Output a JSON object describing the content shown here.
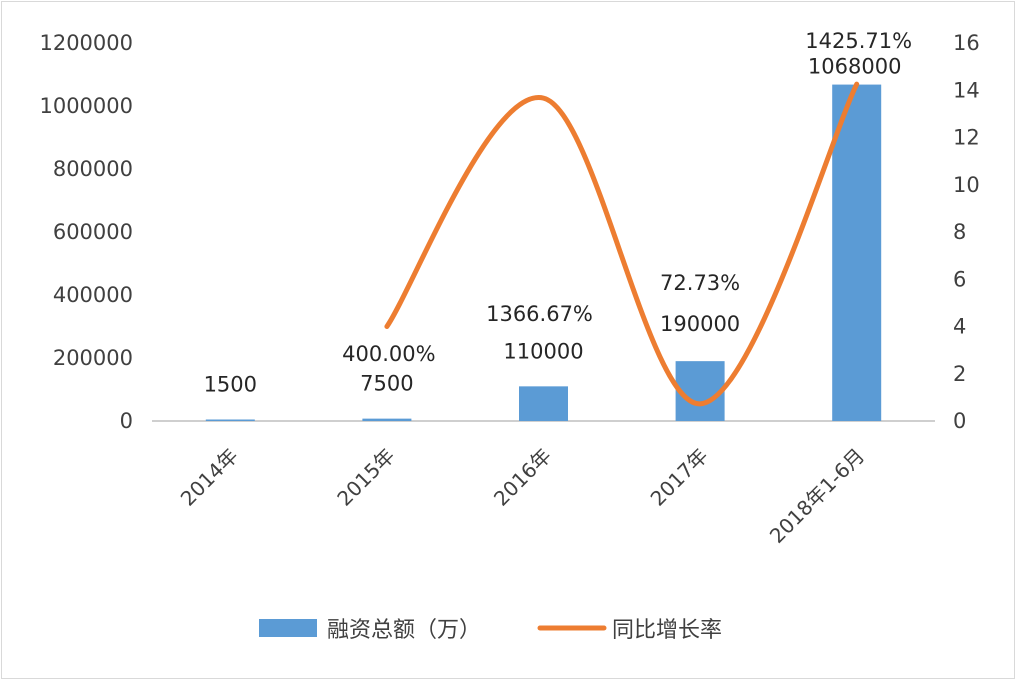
{
  "chart_data": {
    "type": "bar",
    "categories": [
      "2014年",
      "2015年",
      "2016年",
      "2017年",
      "2018年1-6月"
    ],
    "series": [
      {
        "name": "融资总额（万）",
        "type": "bar",
        "axis": "left",
        "color": "#5b9bd5",
        "values": [
          1500,
          7500,
          110000,
          190000,
          1068000
        ],
        "labels": [
          "1500",
          "7500",
          "110000",
          "190000",
          "1068000"
        ]
      },
      {
        "name": "同比增长率",
        "type": "line",
        "smooth": true,
        "axis": "right",
        "color": "#ed7d31",
        "values": [
          null,
          4.0,
          13.6667,
          0.7273,
          14.2571
        ],
        "labels": [
          "",
          "400.00%",
          "1366.67%",
          "72.73%",
          "1425.71%"
        ]
      }
    ],
    "y_left": {
      "min": 0,
      "max": 1200000,
      "ticks": [
        "0",
        "200000",
        "400000",
        "600000",
        "800000",
        "1000000",
        "1200000"
      ]
    },
    "y_right": {
      "min": 0,
      "max": 16,
      "ticks": [
        "0",
        "2",
        "4",
        "6",
        "8",
        "10",
        "12",
        "14",
        "16"
      ]
    },
    "grid": false,
    "legend": "bottom"
  }
}
